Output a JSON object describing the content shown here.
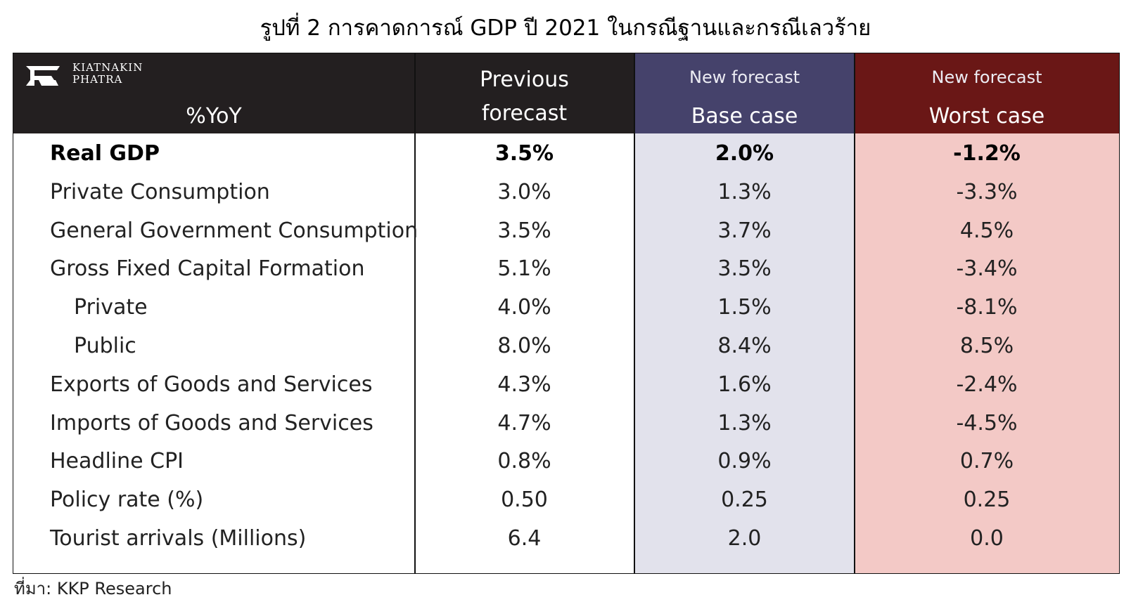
{
  "title": "รูปที่ 2 การคาดการณ์ GDP ปี 2021 ในกรณีฐานและกรณีเลวร้าย",
  "logo": {
    "line1": "KIATNAKIN",
    "line2": "PHATRA"
  },
  "header": {
    "row_label": "%YoY",
    "previous_line1": "Previous",
    "previous_line2": "forecast",
    "base_top": "New forecast",
    "base_bottom": "Base case",
    "worst_top": "New forecast",
    "worst_bottom": "Worst case"
  },
  "colors": {
    "header_dark": "#231f20",
    "base_header": "#45426b",
    "worst_header": "#6a1716",
    "base_fill": "#e2e2ec",
    "worst_fill": "#f3c9c6"
  },
  "rows": [
    {
      "label": "Real GDP",
      "prev": "3.5%",
      "base": "2.0%",
      "worst": "-1.2%"
    },
    {
      "label": "Private Consumption",
      "prev": "3.0%",
      "base": "1.3%",
      "worst": "-3.3%"
    },
    {
      "label": "General Government Consumption",
      "prev": "3.5%",
      "base": "3.7%",
      "worst": "4.5%"
    },
    {
      "label": "Gross Fixed Capital Formation",
      "prev": "5.1%",
      "base": "3.5%",
      "worst": "-3.4%"
    },
    {
      "label": "Private",
      "prev": "4.0%",
      "base": "1.5%",
      "worst": "-8.1%"
    },
    {
      "label": "Public",
      "prev": "8.0%",
      "base": "8.4%",
      "worst": "8.5%"
    },
    {
      "label": "Exports of Goods and Services",
      "prev": "4.3%",
      "base": "1.6%",
      "worst": "-2.4%"
    },
    {
      "label": "Imports of Goods and Services",
      "prev": "4.7%",
      "base": "1.3%",
      "worst": "-4.5%"
    },
    {
      "label": "Headline CPI",
      "prev": "0.8%",
      "base": "0.9%",
      "worst": "0.7%"
    },
    {
      "label": "Policy rate (%)",
      "prev": "0.50",
      "base": "0.25",
      "worst": "0.25"
    },
    {
      "label": "Tourist arrivals (Millions)",
      "prev": "6.4",
      "base": "2.0",
      "worst": "0.0"
    }
  ],
  "source": "ที่มา: KKP Research"
}
